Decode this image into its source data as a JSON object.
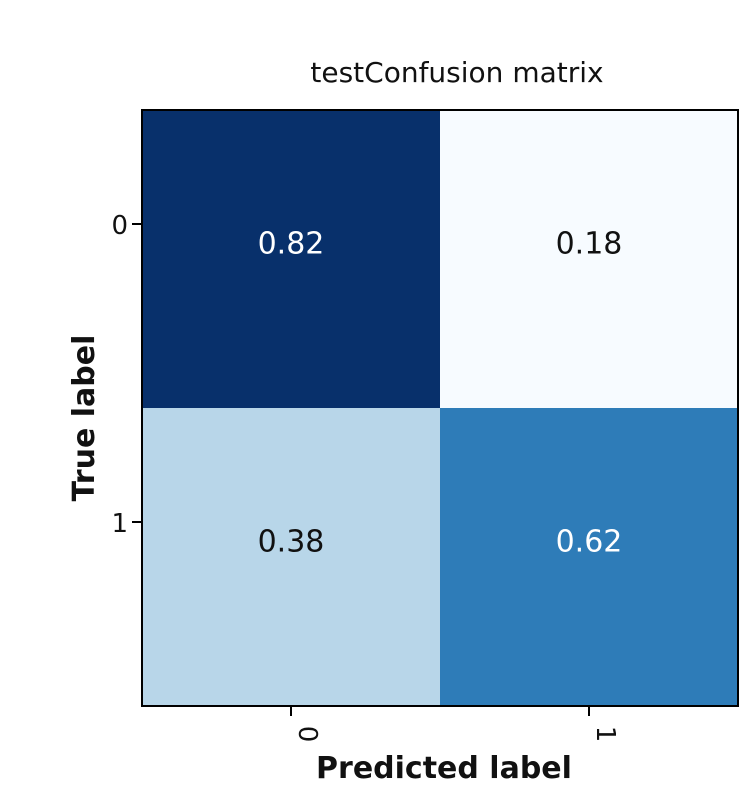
{
  "chart_data": {
    "type": "heatmap",
    "title": "testConfusion matrix",
    "xlabel": "Predicted label",
    "ylabel": "True label",
    "x_ticks": [
      "0",
      "1"
    ],
    "y_ticks": [
      "0",
      "1"
    ],
    "values": [
      [
        0.82,
        0.18
      ],
      [
        0.38,
        0.62
      ]
    ],
    "value_labels": [
      [
        "0.82",
        "0.18"
      ],
      [
        "0.38",
        "0.62"
      ]
    ],
    "colormap": "Blues",
    "colors": {
      "min": "#f7fbff",
      "light": "#b4d4e8",
      "mid": "#3181bd",
      "max": "#08306b",
      "text_dark": "#111111",
      "text_light": "#ffffff",
      "frame": "#000000"
    }
  }
}
